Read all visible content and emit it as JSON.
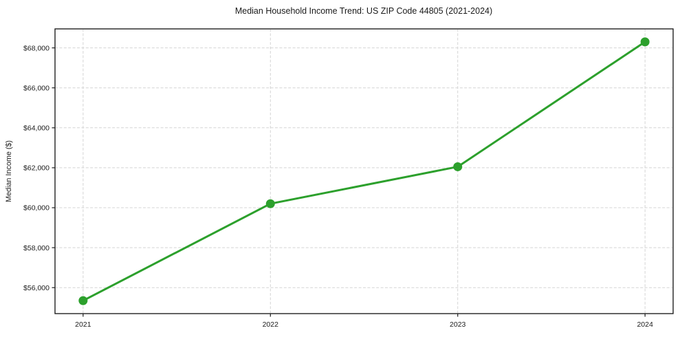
{
  "chart_data": {
    "type": "line",
    "title": "Median Household Income Trend: US ZIP Code 44805 (2021-2024)",
    "xlabel": "",
    "ylabel": "Median Income ($)",
    "categories": [
      "2021",
      "2022",
      "2023",
      "2024"
    ],
    "x": [
      2021,
      2022,
      2023,
      2024
    ],
    "series": [
      {
        "name": "Median Household Income",
        "values": [
          55350,
          60200,
          62050,
          68300
        ]
      }
    ],
    "yticks": [
      {
        "value": 56000,
        "label": "$56,000"
      },
      {
        "value": 58000,
        "label": "$58,000"
      },
      {
        "value": 60000,
        "label": "$60,000"
      },
      {
        "value": 62000,
        "label": "$62,000"
      },
      {
        "value": 64000,
        "label": "$64,000"
      },
      {
        "value": 66000,
        "label": "$66,000"
      },
      {
        "value": 68000,
        "label": "$68,000"
      }
    ],
    "xlim": [
      2020.85,
      2024.15
    ],
    "ylim": [
      54700,
      68950
    ],
    "grid": true,
    "grid_style": "dashed",
    "legend": "none",
    "colors": {
      "line": "#2ca02c",
      "marker": "#2ca02c",
      "grid": "#d4d4d4",
      "spine": "#1a1a1a",
      "text": "#1a1a1a",
      "background": "#ffffff"
    }
  }
}
